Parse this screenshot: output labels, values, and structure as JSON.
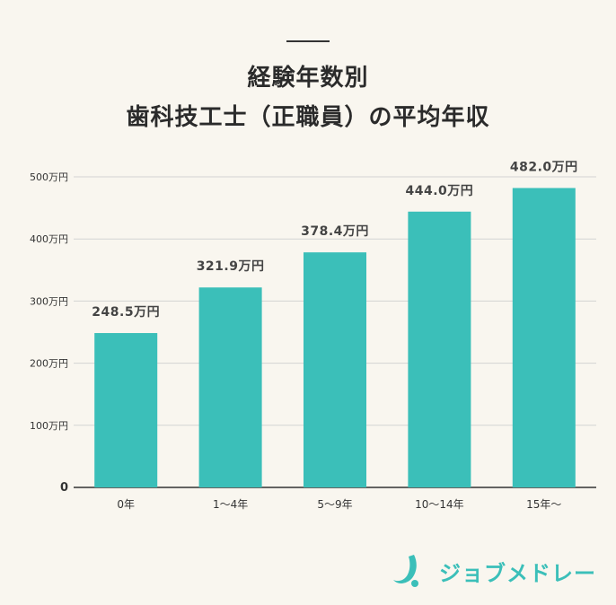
{
  "title": {
    "line1": "経験年数別",
    "line2": "歯科技工士（正職員）の平均年収"
  },
  "brand": {
    "name": "ジョブメドレー",
    "logo_icon": "jobmedley-logo-icon",
    "color": "#3bbfb9"
  },
  "colors": {
    "bar": "#3bbfb9",
    "grid": "#d3d3d3",
    "axis": "#333333",
    "background": "#f9f6ef"
  },
  "chart_data": {
    "type": "bar",
    "categories": [
      "0年",
      "1〜4年",
      "5〜9年",
      "10〜14年",
      "15年〜"
    ],
    "values": [
      248.5,
      321.9,
      378.4,
      444.0,
      482.0
    ],
    "value_labels": [
      "248.5万円",
      "321.9万円",
      "378.4万円",
      "444.0万円",
      "482.0万円"
    ],
    "y_ticks": [
      0,
      100,
      200,
      300,
      400,
      500
    ],
    "y_tick_labels": [
      "0",
      "100万円",
      "200万円",
      "300万円",
      "400万円",
      "500万円"
    ],
    "ylim": [
      0,
      500
    ],
    "grid": true,
    "legend": "none",
    "xlabel": "",
    "ylabel": ""
  }
}
